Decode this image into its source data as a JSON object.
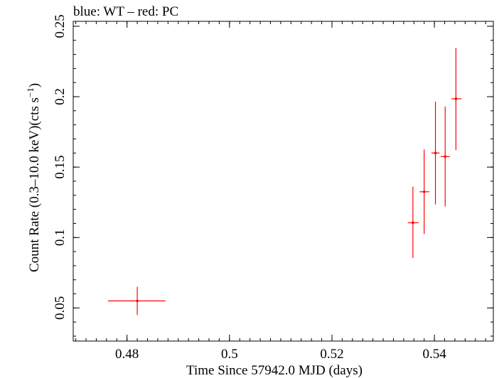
{
  "chart_data": {
    "type": "scatter",
    "title": "blue: WT – red: PC",
    "xlabel": "Time Since 57942.0 MJD (days)",
    "ylabel": "Count Rate (0.3–10.0 keV)(cts s",
    "ylabel_sup": "−1",
    "ylabel_close": ")",
    "xlim": [
      0.4695,
      0.5515
    ],
    "ylim": [
      0.0265,
      0.2535
    ],
    "x_ticks": [
      {
        "value": 0.48,
        "label": "0.48"
      },
      {
        "value": 0.5,
        "label": "0.5"
      },
      {
        "value": 0.52,
        "label": "0.52"
      },
      {
        "value": 0.54,
        "label": "0.54"
      }
    ],
    "x_minor_step": 0.002,
    "y_ticks": [
      {
        "value": 0.05,
        "label": "0.05"
      },
      {
        "value": 0.1,
        "label": "0.1"
      },
      {
        "value": 0.15,
        "label": "0.15"
      },
      {
        "value": 0.2,
        "label": "0.2"
      },
      {
        "value": 0.25,
        "label": "0.25"
      }
    ],
    "y_minor_step": 0.01,
    "series": [
      {
        "name": "PC",
        "color": "#ff0000",
        "points": [
          {
            "x": 0.482,
            "xlo": 0.4763,
            "xhi": 0.4875,
            "y": 0.055,
            "ylo": 0.045,
            "yhi": 0.065
          },
          {
            "x": 0.5358,
            "xlo": 0.5348,
            "xhi": 0.5369,
            "y": 0.1105,
            "ylo": 0.0855,
            "yhi": 0.136
          },
          {
            "x": 0.538,
            "xlo": 0.5371,
            "xhi": 0.539,
            "y": 0.1325,
            "ylo": 0.1025,
            "yhi": 0.1625
          },
          {
            "x": 0.5402,
            "xlo": 0.5394,
            "xhi": 0.541,
            "y": 0.16,
            "ylo": 0.1235,
            "yhi": 0.1965
          },
          {
            "x": 0.5421,
            "xlo": 0.5412,
            "xhi": 0.543,
            "y": 0.1575,
            "ylo": 0.122,
            "yhi": 0.193
          },
          {
            "x": 0.5442,
            "xlo": 0.5433,
            "xhi": 0.5453,
            "y": 0.1985,
            "ylo": 0.162,
            "yhi": 0.2345
          }
        ]
      }
    ]
  }
}
